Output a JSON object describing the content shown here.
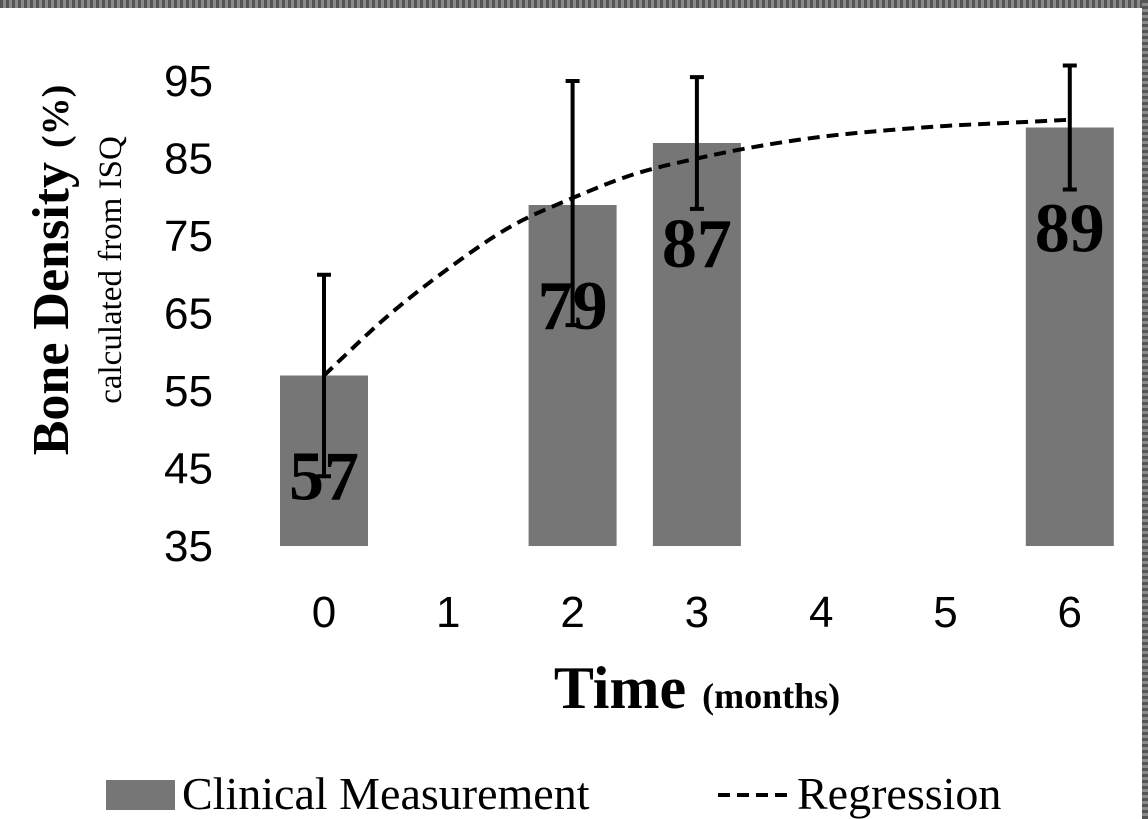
{
  "chart_data": {
    "type": "bar",
    "xlabel": "Time",
    "xlabel_unit": "(months)",
    "ylabel": "Bone Density",
    "ylabel_unit": "(%)",
    "ylabel_sub": "calculated from ISQ",
    "x_ticks": [
      "0",
      "1",
      "2",
      "3",
      "4",
      "5",
      "6"
    ],
    "y_ticks": [
      "35",
      "45",
      "55",
      "65",
      "75",
      "85",
      "95"
    ],
    "ylim": [
      35,
      95
    ],
    "xlim": [
      0,
      6
    ],
    "series": [
      {
        "name": "Clinical Measurement",
        "kind": "bar",
        "color": "#767676",
        "points": [
          {
            "x": 0,
            "value": 57,
            "label": "57",
            "err_low": 44,
            "err_high": 70
          },
          {
            "x": 2,
            "value": 79,
            "label": "79",
            "err_low": 63.5,
            "err_high": 95
          },
          {
            "x": 3,
            "value": 87,
            "label": "87",
            "err_low": 78.5,
            "err_high": 95.5
          },
          {
            "x": 6,
            "value": 89,
            "label": "89",
            "err_low": 81,
            "err_high": 97
          }
        ]
      },
      {
        "name": "Regression",
        "kind": "line",
        "style": "dashed",
        "color": "#000000",
        "x": [
          0,
          0.5,
          1,
          1.5,
          2,
          2.5,
          3,
          3.5,
          4,
          4.5,
          5,
          5.5,
          6
        ],
        "y": [
          57,
          64.5,
          70.8,
          76.2,
          79.9,
          83,
          85,
          86.6,
          87.8,
          88.6,
          89.2,
          89.6,
          90
        ]
      }
    ],
    "legend_position": "bottom",
    "grid": false
  }
}
